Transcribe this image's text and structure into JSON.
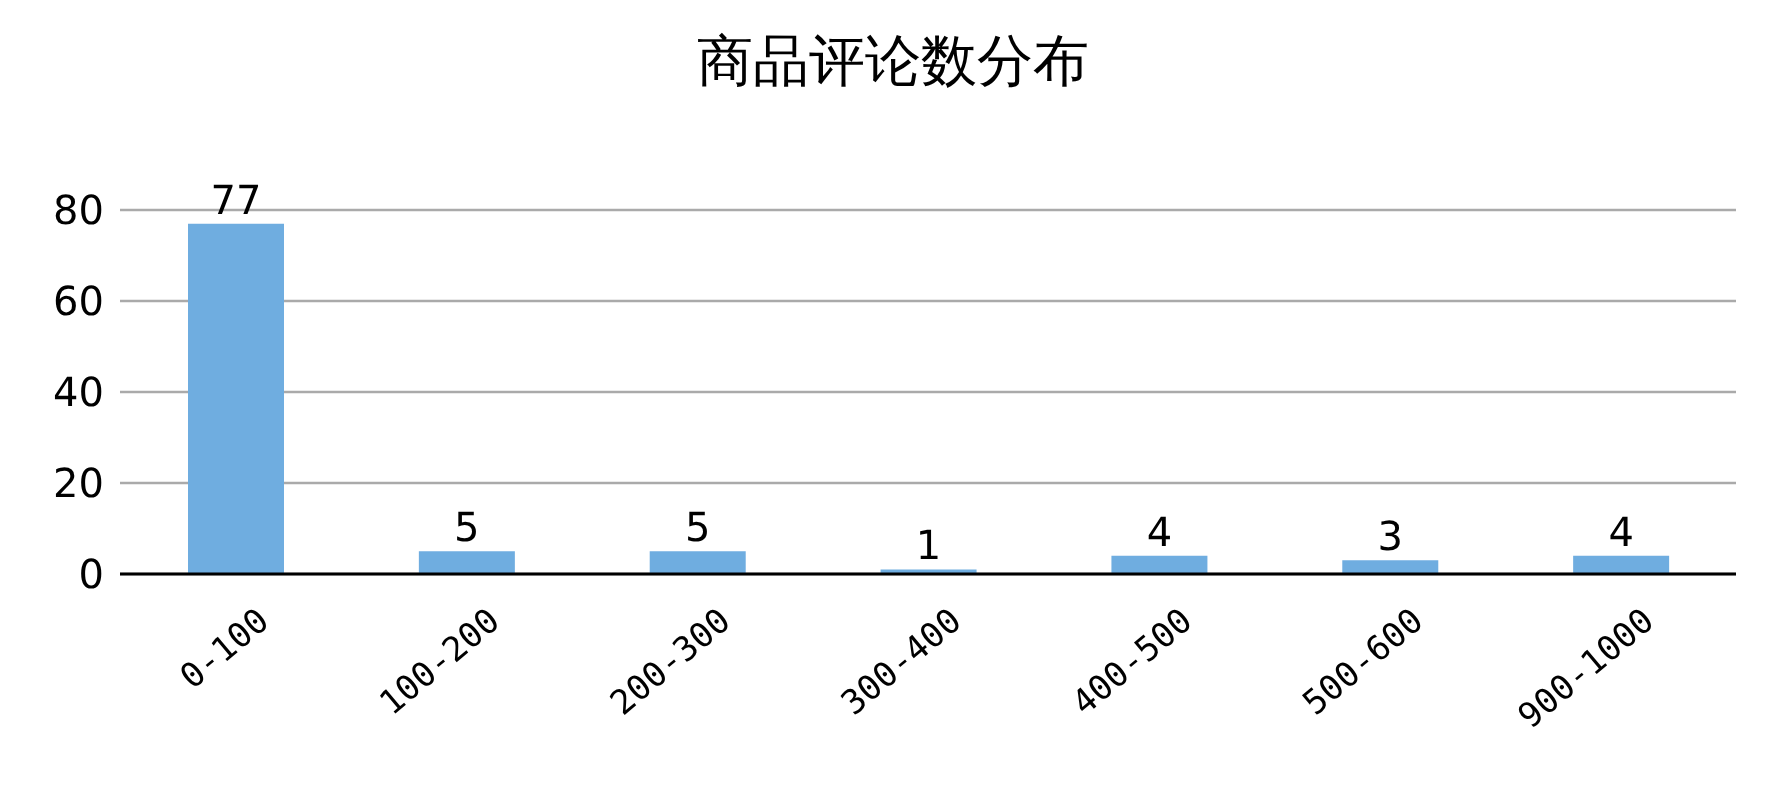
{
  "chart_data": {
    "type": "bar",
    "title": "商品评论数分布",
    "categories": [
      "0-100",
      "100-200",
      "200-300",
      "300-400",
      "400-500",
      "500-600",
      "900-1000"
    ],
    "values": [
      77,
      5,
      5,
      1,
      4,
      3,
      4
    ],
    "color": "#6fade0",
    "ylim": [
      0,
      80
    ],
    "yticks": [
      0,
      20,
      40,
      60,
      80
    ],
    "grid": "y",
    "data_labels": true
  }
}
